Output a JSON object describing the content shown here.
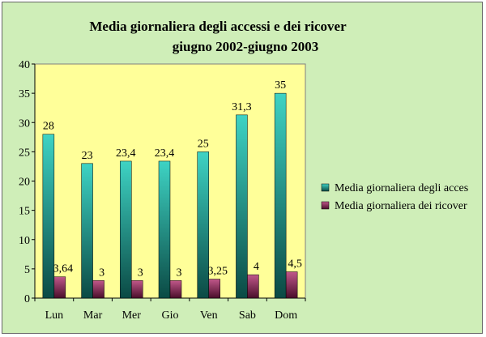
{
  "chart_data": {
    "type": "bar",
    "title": "Media giornaliera degli accessi e dei ricover",
    "subtitle": "giugno 2002-giugno 2003",
    "categories": [
      "Lun",
      "Mar",
      "Mer",
      "Gio",
      "Ven",
      "Sab",
      "Dom"
    ],
    "series": [
      {
        "name": "Media giornaliera degli acces",
        "values": [
          28,
          23,
          23.4,
          23.4,
          25,
          31.3,
          35
        ],
        "labels": [
          "28",
          "23",
          "23,4",
          "23,4",
          "25",
          "31,3",
          "35"
        ],
        "color": "#22b5a8"
      },
      {
        "name": "Media giornaliera dei ricover",
        "values": [
          3.64,
          3,
          3,
          3,
          3.25,
          4,
          4.5
        ],
        "labels": [
          "3,64",
          "3",
          "3",
          "3",
          "3,25",
          "4",
          "4,5"
        ],
        "color": "#a8386a"
      }
    ],
    "yticks": [
      "0",
      "5",
      "10",
      "15",
      "20",
      "25",
      "30",
      "35",
      "40"
    ],
    "ylim": [
      0,
      40
    ],
    "xlabel": "",
    "ylabel": "",
    "grid": false,
    "legend": "right",
    "plot_background": "#ffff99",
    "chart_background": "#cfeeb8"
  }
}
